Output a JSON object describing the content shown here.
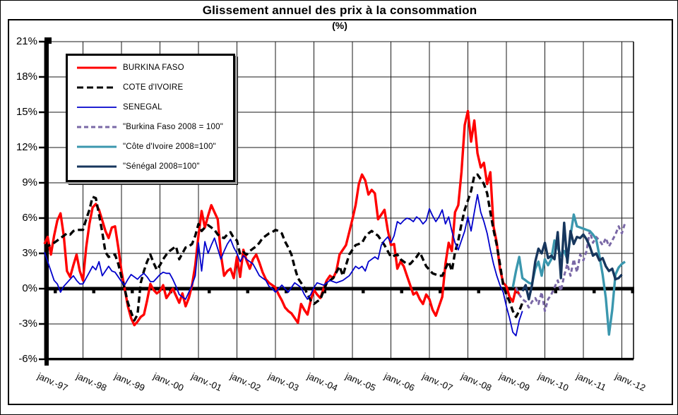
{
  "chart_data": {
    "type": "line",
    "title": "Glissement annuel des prix à la consommation",
    "subtitle": "(%)",
    "grid": true,
    "legend_position": "top-left",
    "y_axis": {
      "min": -6,
      "max": 21,
      "step": 3,
      "tick_labels": [
        "21%",
        "18%",
        "15%",
        "12%",
        "9%",
        "6%",
        "3%",
        "0%",
        "-3%",
        "-6%"
      ],
      "tick_values": [
        21,
        18,
        15,
        12,
        9,
        6,
        3,
        0,
        -3,
        -6
      ],
      "zero_line_emphasis": true
    },
    "x_axis": {
      "min_year": 1997,
      "max_year": 2012.3,
      "tick_labels": [
        "janv.-97",
        "janv.-98",
        "janv.-99",
        "janv.-00",
        "janv.-01",
        "janv.-02",
        "janv.-03",
        "janv.-04",
        "janv.-05",
        "janv.-06",
        "janv.-07",
        "janv.-08",
        "janv.-09",
        "janv.-10",
        "janv.-11",
        "janv.-12"
      ],
      "tick_years": [
        1997,
        1998,
        1999,
        2000,
        2001,
        2002,
        2003,
        2004,
        2005,
        2006,
        2007,
        2008,
        2009,
        2010,
        2011,
        2012
      ]
    },
    "series": [
      {
        "name": "BURKINA FASO",
        "color": "#ff0000",
        "dash": "none",
        "width": 3.4,
        "start_year": 1997.0,
        "step_months": 1,
        "values": [
          3.8,
          4.4,
          2.9,
          4.5,
          5.8,
          6.4,
          4.5,
          1.5,
          1.0,
          2.0,
          2.9,
          1.5,
          0.7,
          3.5,
          5.5,
          6.9,
          7.2,
          6.7,
          5.8,
          4.9,
          4.3,
          5.2,
          5.3,
          3.5,
          1.5,
          0.0,
          -1.5,
          -2.5,
          -3.1,
          -2.8,
          -2.4,
          -2.2,
          -1.0,
          0.4,
          -0.1,
          -0.4,
          -0.2,
          0.3,
          -0.8,
          -0.4,
          0.0,
          -0.6,
          -1.2,
          -0.4,
          -1.5,
          -0.8,
          0.3,
          2.0,
          4.5,
          6.6,
          5.2,
          6.2,
          7.1,
          6.5,
          5.9,
          2.9,
          1.1,
          1.5,
          1.7,
          0.9,
          2.7,
          1.0,
          3.3,
          2.4,
          1.7,
          2.5,
          2.9,
          2.2,
          1.4,
          0.8,
          0.5,
          0.3,
          0.1,
          -0.5,
          -1.0,
          -1.6,
          -1.9,
          -2.1,
          -2.5,
          -2.9,
          -1.3,
          -1.8,
          -2.2,
          -1.0,
          -0.1,
          -0.5,
          -0.8,
          0.0,
          0.7,
          1.1,
          0.9,
          1.5,
          2.9,
          3.3,
          3.7,
          4.8,
          5.9,
          7.1,
          8.9,
          9.7,
          9.2,
          8.0,
          8.4,
          8.1,
          5.9,
          6.3,
          6.7,
          5.0,
          3.7,
          3.8,
          1.7,
          2.3,
          1.9,
          1.1,
          0.3,
          -0.5,
          -0.3,
          -0.9,
          -1.3,
          -0.5,
          -0.9,
          -1.8,
          -2.3,
          -1.5,
          -0.7,
          2.1,
          3.9,
          3.2,
          6.5,
          7.1,
          9.9,
          13.9,
          15.1,
          12.5,
          14.3,
          11.5,
          10.3,
          10.7,
          8.9,
          9.9,
          5.3,
          3.9,
          1.7,
          0.5,
          0.2,
          -0.7,
          -1.1,
          0.0,
          -0.5
        ]
      },
      {
        "name": "COTE d'IVOIRE",
        "color": "#000000",
        "dash": "9 5",
        "width": 3.4,
        "start_year": 1997.0,
        "step_months": 1,
        "values": [
          3.7,
          3.6,
          3.8,
          3.9,
          4.1,
          4.3,
          4.5,
          4.7,
          4.6,
          4.9,
          5.0,
          5.0,
          5.0,
          5.9,
          6.7,
          7.8,
          7.7,
          6.3,
          4.8,
          3.1,
          2.7,
          2.8,
          2.9,
          2.1,
          1.0,
          0.0,
          -1.2,
          -2.0,
          -2.7,
          -2.2,
          0.5,
          1.5,
          2.3,
          2.9,
          2.2,
          1.6,
          2.0,
          2.5,
          2.9,
          3.2,
          3.4,
          3.6,
          2.5,
          3.0,
          3.5,
          3.6,
          3.8,
          4.5,
          5.5,
          4.9,
          5.2,
          5.4,
          5.2,
          5.0,
          4.6,
          4.4,
          4.3,
          4.6,
          4.8,
          4.3,
          4.1,
          2.9,
          3.1,
          2.9,
          3.2,
          3.4,
          3.6,
          3.9,
          4.3,
          4.5,
          4.7,
          4.8,
          5.0,
          4.9,
          4.7,
          4.0,
          3.5,
          2.9,
          1.8,
          0.9,
          0.5,
          0.1,
          -0.5,
          -1.0,
          -1.3,
          -1.1,
          -0.9,
          -0.2,
          0.5,
          0.7,
          0.9,
          1.4,
          1.9,
          1.1,
          2.0,
          2.9,
          3.3,
          3.7,
          3.8,
          3.9,
          4.4,
          4.7,
          4.9,
          4.7,
          4.5,
          4.1,
          3.7,
          3.2,
          2.7,
          2.8,
          2.9,
          2.5,
          2.3,
          2.1,
          2.1,
          2.4,
          2.7,
          3.1,
          2.5,
          1.9,
          1.6,
          1.3,
          1.2,
          1.1,
          1.1,
          1.7,
          2.3,
          1.5,
          3.1,
          4.1,
          5.5,
          6.7,
          7.5,
          8.3,
          9.6,
          9.7,
          9.3,
          8.9,
          8.1,
          6.5,
          5.0,
          3.7,
          2.1,
          0.3,
          -0.5,
          -1.1,
          -1.9,
          -2.4,
          -1.9,
          -1.2
        ]
      },
      {
        "name": "SENEGAL",
        "color": "#0000cc",
        "dash": "none",
        "width": 1.8,
        "start_year": 1997.0,
        "step_months": 1,
        "values": [
          3.1,
          2.3,
          1.5,
          0.7,
          0.4,
          -0.3,
          0.2,
          0.5,
          0.8,
          1.1,
          0.7,
          0.4,
          0.4,
          0.9,
          1.4,
          1.9,
          1.6,
          2.3,
          1.1,
          1.5,
          1.9,
          1.5,
          1.4,
          1.0,
          0.6,
          0.3,
          0.8,
          1.2,
          1.0,
          0.8,
          1.1,
          1.3,
          1.0,
          0.6,
          0.6,
          0.9,
          1.2,
          1.4,
          1.3,
          1.3,
          0.8,
          0.2,
          -0.5,
          -0.7,
          -0.9,
          -0.3,
          0.3,
          1.1,
          3.9,
          1.5,
          4.0,
          3.0,
          3.7,
          4.3,
          3.4,
          2.5,
          3.2,
          3.8,
          4.2,
          3.5,
          3.0,
          2.3,
          2.8,
          2.5,
          2.3,
          2.1,
          1.6,
          1.1,
          0.9,
          0.7,
          0.2,
          0.0,
          -0.3,
          0.0,
          0.3,
          0.0,
          -0.3,
          0.1,
          0.5,
          0.3,
          0.1,
          -0.5,
          -0.9,
          -0.5,
          0.1,
          0.5,
          0.4,
          0.3,
          0.5,
          0.7,
          0.6,
          0.5,
          0.6,
          0.7,
          0.9,
          1.1,
          1.5,
          1.9,
          1.7,
          1.9,
          1.5,
          2.3,
          2.5,
          2.7,
          2.5,
          3.7,
          4.1,
          4.4,
          3.9,
          4.5,
          5.7,
          5.5,
          5.8,
          6.0,
          5.9,
          5.7,
          6.1,
          5.9,
          5.5,
          5.8,
          6.8,
          6.2,
          5.7,
          6.1,
          6.7,
          5.5,
          6.1,
          4.9,
          3.9,
          3.3,
          4.1,
          4.9,
          6.1,
          4.9,
          6.5,
          8.0,
          6.5,
          5.7,
          4.7,
          3.3,
          2.1,
          1.1,
          0.3,
          -0.3,
          -1.5,
          -2.5,
          -3.7,
          -4.0,
          -2.7,
          -1.9
        ]
      },
      {
        "name": "\"Burkina Faso 2008 = 100\"",
        "color": "#7a68a6",
        "dash": "6 4",
        "width": 3,
        "start_year": 2009.25,
        "step_months": 1,
        "values": [
          0.1,
          -0.5,
          -0.9,
          -1.1,
          -1.6,
          -1.1,
          -0.8,
          -1.3,
          -0.3,
          -1.9,
          -0.9,
          -0.5,
          0.1,
          0.7,
          -0.2,
          1.1,
          2.1,
          1.1,
          2.5,
          1.4,
          2.9,
          2.4,
          3.2,
          4.9,
          3.9,
          4.4,
          4.1,
          3.7,
          4.3,
          3.6,
          4.1,
          4.6,
          5.3,
          4.7,
          5.6
        ]
      },
      {
        "name": "\"Côte d'Ivoire 2008=100\"",
        "color": "#3b97ae",
        "dash": "none",
        "width": 3.4,
        "start_year": 2009.1667,
        "step_months": 1,
        "values": [
          0.1,
          1.5,
          2.7,
          0.9,
          0.7,
          0.5,
          0.4,
          1.7,
          2.3,
          1.1,
          2.5,
          2.0,
          2.5,
          4.1,
          3.5,
          2.8,
          3.2,
          2.5,
          4.5,
          6.3,
          5.3,
          5.2,
          5.1,
          5.0,
          4.9,
          4.6,
          4.2,
          2.8,
          1.2,
          -0.8,
          -3.9,
          -1.8,
          1.2,
          1.8,
          2.1,
          2.3
        ]
      },
      {
        "name": "\"Sénégal 2008=100\"",
        "color": "#17365d",
        "dash": "none",
        "width": 3.4,
        "start_year": 2009.4167,
        "step_months": 1,
        "values": [
          -0.2,
          0.3,
          -0.9,
          0.3,
          2.3,
          3.4,
          3.0,
          3.9,
          2.6,
          2.8,
          2.5,
          4.8,
          0.9,
          5.6,
          2.2,
          4.9,
          3.8,
          4.4,
          4.3,
          4.6,
          4.2,
          3.6,
          2.8,
          3.0,
          2.4,
          2.6,
          1.9,
          1.5,
          1.7,
          0.8,
          0.9,
          1.2
        ]
      }
    ]
  }
}
